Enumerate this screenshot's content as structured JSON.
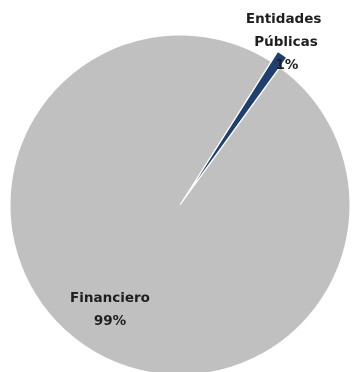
{
  "chart_data": {
    "type": "pie",
    "slices": [
      {
        "label": "Financiero",
        "label_lines": [
          "Financiero"
        ],
        "value": 99,
        "value_label": "99%",
        "color": "#c0c0c0"
      },
      {
        "label": "Entidades Públicas",
        "label_lines": [
          "Entidades",
          "Públicas"
        ],
        "value": 1,
        "value_label": "1%",
        "color": "#1f3f6e"
      }
    ],
    "start_angle_deg": 54,
    "direction": "counterclockwise",
    "exploded_slice": "Entidades Públicas"
  }
}
